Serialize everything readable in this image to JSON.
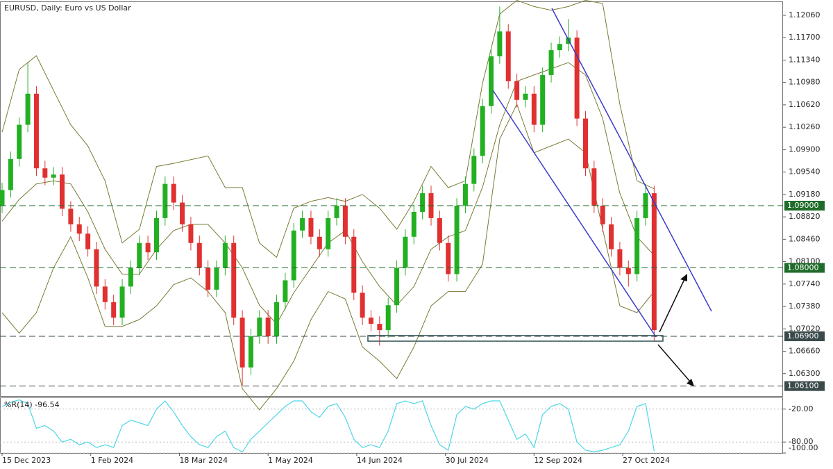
{
  "chart_data": [
    {
      "type": "candlestick",
      "title": "EURUSD, Daily:  Euro vs US Dollar",
      "x": [
        0,
        3,
        6,
        9,
        12,
        15,
        18,
        21,
        24,
        27,
        30,
        33,
        36,
        39,
        42,
        45,
        48,
        51,
        54,
        57,
        60,
        63,
        66,
        69,
        72,
        75,
        78,
        81,
        84,
        87,
        90,
        93,
        96,
        99,
        102,
        105,
        108,
        111,
        114,
        117,
        120,
        123,
        126,
        129,
        132,
        135,
        138,
        141,
        144,
        147,
        150,
        153,
        156,
        159,
        162,
        165,
        168,
        171,
        174,
        177,
        180,
        183,
        186,
        189,
        192,
        195,
        198,
        201,
        204,
        207,
        210,
        213,
        216,
        219,
        222,
        225,
        228
      ],
      "open": [
        1.09,
        1.0925,
        1.0975,
        1.103,
        1.108,
        1.096,
        1.0945,
        1.095,
        1.0895,
        1.087,
        1.0855,
        1.083,
        1.077,
        1.0745,
        1.072,
        1.077,
        1.08,
        1.084,
        1.0825,
        1.088,
        1.0935,
        1.0905,
        1.087,
        1.084,
        1.08,
        1.0765,
        1.08,
        1.084,
        1.072,
        1.064,
        1.069,
        1.072,
        1.069,
        1.0745,
        1.078,
        1.086,
        1.088,
        1.085,
        1.083,
        1.088,
        1.09,
        1.085,
        1.076,
        1.072,
        1.071,
        1.07,
        1.074,
        1.08,
        1.085,
        1.089,
        1.092,
        1.088,
        1.084,
        1.079,
        1.09,
        1.0935,
        1.098,
        1.106,
        1.114,
        1.118,
        1.11,
        1.107,
        1.108,
        1.103,
        1.111,
        1.115,
        1.116,
        1.117,
        1.104,
        1.096,
        1.09,
        1.087,
        1.083,
        1.08,
        1.079,
        1.088,
        1.092
      ],
      "high": [
        1.0937,
        1.0987,
        1.1042,
        1.113,
        1.1092,
        1.0972,
        1.0962,
        1.0962,
        1.0907,
        1.0882,
        1.0867,
        1.0842,
        1.0782,
        1.0757,
        1.0782,
        1.0812,
        1.0852,
        1.0852,
        1.0892,
        1.0947,
        1.0947,
        1.0917,
        1.0882,
        1.0852,
        1.0812,
        1.0812,
        1.0852,
        1.0852,
        1.0732,
        1.0702,
        1.0732,
        1.0732,
        1.0757,
        1.0792,
        1.0872,
        1.0892,
        1.0892,
        1.0862,
        1.0892,
        1.0912,
        1.0912,
        1.0862,
        1.0772,
        1.0732,
        1.0722,
        1.0752,
        1.0812,
        1.0862,
        1.0902,
        1.0932,
        1.0932,
        1.0892,
        1.0852,
        1.0912,
        1.0947,
        1.0992,
        1.1072,
        1.1152,
        1.122,
        1.1192,
        1.1112,
        1.1092,
        1.1092,
        1.1122,
        1.1162,
        1.1172,
        1.12,
        1.1182,
        1.1052,
        1.0972,
        1.0912,
        1.0882,
        1.0842,
        1.0812,
        1.0892,
        1.0935,
        1.0932
      ],
      "low": [
        1.0888,
        1.0913,
        1.0963,
        1.1018,
        1.0948,
        1.0933,
        1.0933,
        1.0883,
        1.0858,
        1.0843,
        1.0818,
        1.0758,
        1.0733,
        1.0708,
        1.0708,
        1.0758,
        1.0788,
        1.0813,
        1.0813,
        1.0868,
        1.0893,
        1.0858,
        1.0828,
        1.0788,
        1.0753,
        1.0753,
        1.0788,
        1.0708,
        1.061,
        1.0628,
        1.0678,
        1.0678,
        1.0678,
        1.0733,
        1.0768,
        1.0848,
        1.0838,
        1.0818,
        1.0818,
        1.0868,
        1.0838,
        1.0748,
        1.0708,
        1.0698,
        1.0675,
        1.0688,
        1.0728,
        1.0788,
        1.0838,
        1.0878,
        1.0868,
        1.0828,
        1.0778,
        1.0778,
        1.0888,
        1.0923,
        1.0968,
        1.1048,
        1.1128,
        1.1088,
        1.1058,
        1.1058,
        1.1018,
        1.1018,
        1.1098,
        1.1138,
        1.1148,
        1.1028,
        1.0948,
        1.0888,
        1.0858,
        1.0818,
        1.0788,
        1.077,
        1.0778,
        1.0868,
        1.0683
      ],
      "close": [
        1.0925,
        1.0975,
        1.103,
        1.108,
        1.096,
        1.0945,
        1.095,
        1.0895,
        1.087,
        1.0855,
        1.083,
        1.077,
        1.0745,
        1.072,
        1.077,
        1.08,
        1.084,
        1.0825,
        1.088,
        1.0935,
        1.0905,
        1.087,
        1.084,
        1.08,
        1.0765,
        1.08,
        1.084,
        1.072,
        1.064,
        1.069,
        1.072,
        1.069,
        1.0745,
        1.078,
        1.086,
        1.088,
        1.085,
        1.083,
        1.088,
        1.09,
        1.085,
        1.076,
        1.072,
        1.071,
        1.07,
        1.074,
        1.08,
        1.085,
        1.089,
        1.092,
        1.088,
        1.084,
        1.079,
        1.09,
        1.0935,
        1.098,
        1.106,
        1.114,
        1.118,
        1.11,
        1.107,
        1.108,
        1.103,
        1.111,
        1.115,
        1.116,
        1.117,
        1.104,
        1.096,
        1.09,
        1.087,
        1.083,
        1.08,
        1.079,
        1.088,
        1.092,
        1.07
      ],
      "up_color": "#22b022",
      "down_color": "#e03030",
      "bands": {
        "color": "#7a7a35",
        "x": [
          0,
          6,
          12,
          18,
          24,
          30,
          36,
          42,
          48,
          54,
          60,
          66,
          72,
          78,
          84,
          90,
          96,
          102,
          108,
          114,
          120,
          126,
          132,
          138,
          144,
          150,
          156,
          162,
          168,
          174,
          180,
          186,
          192,
          198,
          204,
          210,
          216,
          222,
          228
        ],
        "upper": [
          1.1018,
          1.1119,
          1.1141,
          1.1085,
          1.103,
          1.0996,
          1.094,
          1.084,
          1.0862,
          1.0963,
          1.0968,
          1.0974,
          1.098,
          1.0929,
          1.0929,
          1.084,
          1.0817,
          1.0896,
          1.0907,
          1.0913,
          1.0907,
          1.0918,
          1.0896,
          1.0862,
          1.0907,
          1.0963,
          1.0929,
          1.094,
          1.1097,
          1.1208,
          1.123,
          1.122,
          1.1214,
          1.122,
          1.123,
          1.1225,
          1.1063,
          1.094,
          1.0927
        ],
        "middle": [
          1.0875,
          1.091,
          1.0935,
          1.094,
          1.0935,
          1.089,
          1.083,
          1.079,
          1.079,
          1.083,
          1.086,
          1.087,
          1.087,
          1.084,
          1.08,
          1.074,
          1.071,
          1.076,
          1.08,
          1.084,
          1.086,
          1.081,
          1.077,
          1.074,
          1.077,
          1.083,
          1.085,
          1.086,
          1.093,
          1.103,
          1.11,
          1.111,
          1.112,
          1.113,
          1.111,
          1.104,
          1.092,
          1.085,
          1.082
        ],
        "lower": [
          1.0728,
          1.0695,
          1.0728,
          1.08,
          1.085,
          1.0784,
          1.0706,
          1.0706,
          1.0717,
          1.0739,
          1.0773,
          1.0784,
          1.0762,
          1.0728,
          1.0606,
          1.0572,
          1.0606,
          1.065,
          1.0717,
          1.0762,
          1.075,
          1.0673,
          1.065,
          1.0622,
          1.0673,
          1.0739,
          1.0762,
          1.0762,
          1.0806,
          1.1007,
          1.1063,
          1.0985,
          1.0996,
          1.1007,
          1.0985,
          1.0862,
          1.0739,
          1.0728,
          1.0762
        ]
      },
      "xlim": [
        -0.73,
        273.06
      ],
      "xticks": [
        {
          "value": 0,
          "label": "15 Dec 2023"
        },
        {
          "value": 31,
          "label": "1 Feb 2024"
        },
        {
          "value": 62,
          "label": "18 Mar 2024"
        },
        {
          "value": 93,
          "label": "1 May 2024"
        },
        {
          "value": 124,
          "label": "14 Jun 2024"
        },
        {
          "value": 155,
          "label": "30 Jul 2024"
        },
        {
          "value": 186,
          "label": "12 Sep 2024"
        },
        {
          "value": 217,
          "label": "27 Oct 2024"
        }
      ],
      "ylim": [
        1.0594,
        1.12272
      ],
      "yticks": [
        {
          "value": 1.1206,
          "label": "1.12060"
        },
        {
          "value": 1.117,
          "label": "1.11700"
        },
        {
          "value": 1.1134,
          "label": "1.11340"
        },
        {
          "value": 1.1098,
          "label": "1.10980"
        },
        {
          "value": 1.1062,
          "label": "1.10620"
        },
        {
          "value": 1.1026,
          "label": "1.10260"
        },
        {
          "value": 1.099,
          "label": "1.09900"
        },
        {
          "value": 1.0954,
          "label": "1.09540"
        },
        {
          "value": 1.0918,
          "label": "1.09180"
        },
        {
          "value": 1.0882,
          "label": "1.08820"
        },
        {
          "value": 1.0846,
          "label": "1.08460"
        },
        {
          "value": 1.081,
          "label": "1.08100"
        },
        {
          "value": 1.0774,
          "label": "1.07740"
        },
        {
          "value": 1.0738,
          "label": "1.07380"
        },
        {
          "value": 1.0702,
          "label": "1.07020"
        },
        {
          "value": 1.0666,
          "label": "1.06660"
        },
        {
          "value": 1.063,
          "label": "1.06300"
        }
      ],
      "levels": [
        {
          "value": 1.09,
          "label": "1.09000",
          "color": "#1f6b2a"
        },
        {
          "value": 1.08,
          "label": "1.08000",
          "color": "#1f6b2a"
        },
        {
          "value": 1.069,
          "label": "1.06900",
          "color": "#3a4a4a"
        },
        {
          "value": 1.061,
          "label": "1.06100",
          "color": "#3a4a4a"
        }
      ]
    },
    {
      "type": "line",
      "title": "%R(14) -96.54",
      "color": "#4dd6e6",
      "x": [
        0,
        3,
        6,
        9,
        12,
        15,
        18,
        21,
        24,
        27,
        30,
        33,
        36,
        39,
        42,
        45,
        48,
        51,
        54,
        57,
        60,
        63,
        66,
        69,
        72,
        75,
        78,
        81,
        84,
        87,
        90,
        93,
        96,
        99,
        102,
        105,
        108,
        111,
        114,
        117,
        120,
        123,
        126,
        129,
        132,
        135,
        138,
        141,
        144,
        147,
        150,
        153,
        156,
        159,
        162,
        165,
        168,
        171,
        174,
        177,
        180,
        183,
        186,
        189,
        192,
        195,
        198,
        201,
        204,
        207,
        210,
        213,
        216,
        219,
        222,
        225,
        228
      ],
      "values": [
        -15,
        -8,
        -3,
        -10,
        -55,
        -50,
        -60,
        -80,
        -75,
        -85,
        -80,
        -90,
        -85,
        -90,
        -50,
        -40,
        -45,
        -50,
        -20,
        -5,
        -25,
        -50,
        -70,
        -85,
        -90,
        -70,
        -60,
        -90,
        -98,
        -75,
        -60,
        -45,
        -30,
        -15,
        -5,
        -5,
        -25,
        -35,
        -15,
        -10,
        -35,
        -75,
        -90,
        -85,
        -90,
        -60,
        -10,
        -5,
        -10,
        -5,
        -50,
        -85,
        -95,
        -30,
        -15,
        -20,
        -10,
        -5,
        -5,
        -40,
        -75,
        -65,
        -90,
        -30,
        -15,
        -10,
        -20,
        -80,
        -95,
        -98,
        -95,
        -90,
        -85,
        -60,
        -15,
        -10,
        -96.54
      ],
      "xlim": [
        -0.73,
        273.06
      ],
      "ylim": [
        -100,
        0
      ],
      "yticks": [
        {
          "value": -20,
          "label": "-20.00"
        },
        {
          "value": -80,
          "label": "-80.00"
        },
        {
          "value": -100,
          "label": "-100.00"
        }
      ]
    }
  ]
}
